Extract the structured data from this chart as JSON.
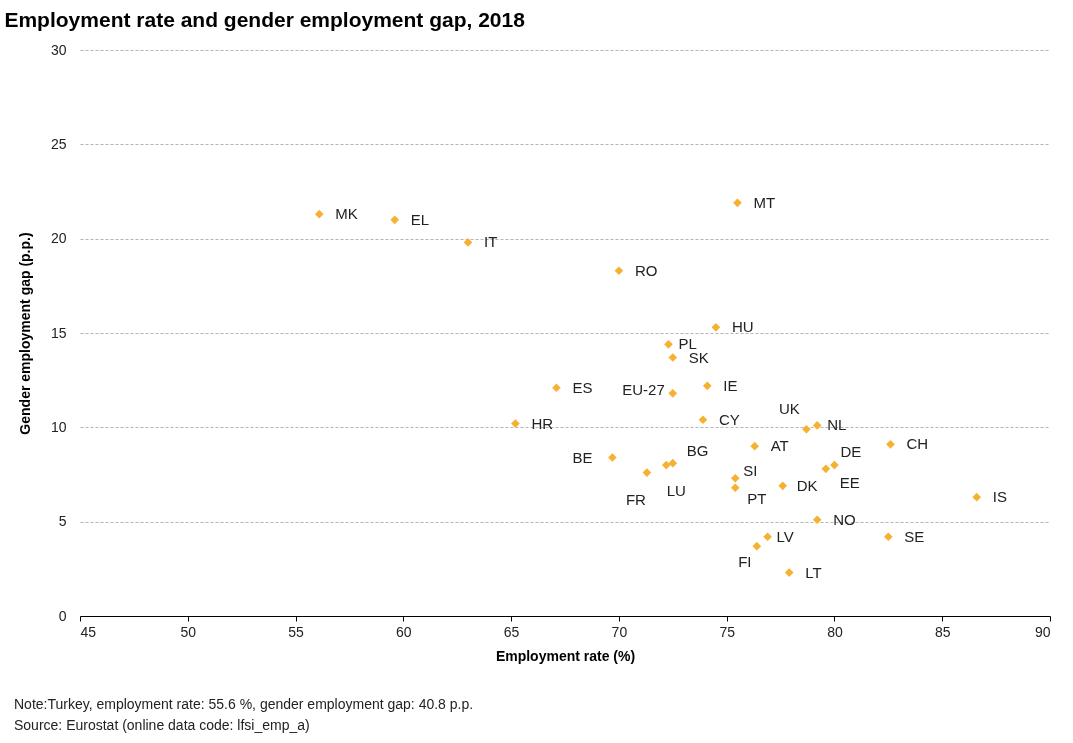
{
  "chart_data": {
    "type": "scatter",
    "title": "Employment rate and gender employment gap, 2018",
    "xlabel": "Employment rate (%)",
    "ylabel": "Gender employment gap (p.p.)",
    "x": [
      56.1,
      59.6,
      63.0,
      75.5,
      70.0,
      74.5,
      72.3,
      72.5,
      67.1,
      72.5,
      74.1,
      65.2,
      73.9,
      78.7,
      79.2,
      76.3,
      82.6,
      69.7,
      72.5,
      72.2,
      71.3,
      75.4,
      75.4,
      77.6,
      80.0,
      79.6,
      86.6,
      79.2,
      82.5,
      76.9,
      76.4,
      77.9
    ],
    "series": [
      {
        "color": "#f5b232",
        "values": [
          21.3,
          21.0,
          19.8,
          21.9,
          18.3,
          15.3,
          14.4,
          13.7,
          12.1,
          11.8,
          12.2,
          10.2,
          10.4,
          9.9,
          10.1,
          9.0,
          9.1,
          8.4,
          8.1,
          8.0,
          7.6,
          7.3,
          6.8,
          6.9,
          8.0,
          7.8,
          6.3,
          5.1,
          4.2,
          4.2,
          3.7,
          2.3
        ]
      }
    ],
    "xlim": [
      45,
      90
    ],
    "xticks": [
      45,
      50,
      55,
      60,
      65,
      70,
      75,
      80,
      85,
      90
    ],
    "ylim": [
      0,
      30
    ],
    "yticks": [
      0,
      5,
      10,
      15,
      20,
      25,
      30
    ],
    "grid": "y",
    "marker": "diamond",
    "annotations": [
      {
        "text": "MK",
        "x": 56.1,
        "y": 21.3
      },
      {
        "text": "EL",
        "x": 59.6,
        "y": 21.0
      },
      {
        "text": "IT",
        "x": 63.0,
        "y": 19.8
      },
      {
        "text": "MT",
        "x": 75.5,
        "y": 21.9
      },
      {
        "text": "RO",
        "x": 70.0,
        "y": 18.3
      },
      {
        "text": "HU",
        "x": 74.5,
        "y": 15.3
      },
      {
        "text": "PL",
        "x": 72.3,
        "y": 14.4
      },
      {
        "text": "SK",
        "x": 72.5,
        "y": 13.7
      },
      {
        "text": "ES",
        "x": 67.1,
        "y": 12.1
      },
      {
        "text": "EU-27",
        "x": 72.5,
        "y": 11.8
      },
      {
        "text": "IE",
        "x": 74.1,
        "y": 12.2
      },
      {
        "text": "HR",
        "x": 65.2,
        "y": 10.2
      },
      {
        "text": "CY",
        "x": 73.9,
        "y": 10.4
      },
      {
        "text": "UK",
        "x": 78.7,
        "y": 9.9
      },
      {
        "text": "NL",
        "x": 79.2,
        "y": 10.1
      },
      {
        "text": "AT",
        "x": 76.3,
        "y": 9.0
      },
      {
        "text": "CH",
        "x": 82.6,
        "y": 9.1
      },
      {
        "text": "BE",
        "x": 69.7,
        "y": 8.4
      },
      {
        "text": "BG",
        "x": 72.5,
        "y": 8.1
      },
      {
        "text": "LU",
        "x": 72.2,
        "y": 8.0
      },
      {
        "text": "FR",
        "x": 71.3,
        "y": 7.6
      },
      {
        "text": "SI",
        "x": 75.4,
        "y": 7.3
      },
      {
        "text": "PT",
        "x": 75.4,
        "y": 6.8
      },
      {
        "text": "DK",
        "x": 77.6,
        "y": 6.9
      },
      {
        "text": "DE",
        "x": 80.0,
        "y": 8.0
      },
      {
        "text": "EE",
        "x": 79.6,
        "y": 7.8
      },
      {
        "text": "IS",
        "x": 86.6,
        "y": 6.3
      },
      {
        "text": "NO",
        "x": 79.2,
        "y": 5.1
      },
      {
        "text": "SE",
        "x": 82.5,
        "y": 4.2
      },
      {
        "text": "LV",
        "x": 76.9,
        "y": 4.2
      },
      {
        "text": "FI",
        "x": 76.4,
        "y": 3.7
      },
      {
        "text": "LT",
        "x": 77.9,
        "y": 2.3
      },
      "Note:Turkey,  employment rate: 55.6 %, gender employment gap:  40.8 p.p.",
      "Source: Eurostat (online data code: lfsi_emp_a)"
    ]
  }
}
